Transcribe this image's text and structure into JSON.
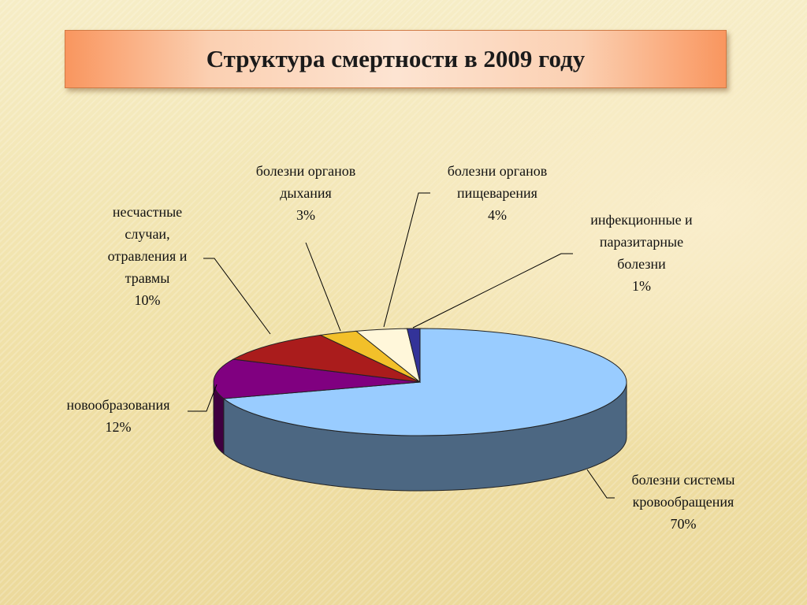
{
  "title": "Структура смертности в 2009 году",
  "chart_data": {
    "type": "pie",
    "title": "Структура смертности в 2009 году",
    "slices": [
      {
        "lines": [
          "болезни системы",
          "кровообращения"
        ],
        "pct": "70%",
        "value": 70,
        "color": "#99ccff",
        "side_color": "#4c6782"
      },
      {
        "lines": [
          "новообразования"
        ],
        "pct": "12%",
        "value": 12,
        "color": "#800080",
        "side_color": "#400040"
      },
      {
        "lines": [
          "несчастные",
          "случаи,",
          "отравления и",
          "травмы"
        ],
        "pct": "10%",
        "value": 10,
        "color": "#aa1c1c",
        "side_color": "#5a0e0e"
      },
      {
        "lines": [
          "болезни органов",
          "дыхания"
        ],
        "pct": "3%",
        "value": 3,
        "color": "#f2c02a",
        "side_color": "#8a6b12"
      },
      {
        "lines": [
          "болезни органов",
          "пищеварения"
        ],
        "pct": "4%",
        "value": 4,
        "color": "#fff7da",
        "side_color": "#bbb39a"
      },
      {
        "lines": [
          "инфекционные и",
          "паразитарные",
          "болезни"
        ],
        "pct": "1%",
        "value": 1,
        "color": "#333399",
        "side_color": "#1a1a55"
      }
    ]
  }
}
